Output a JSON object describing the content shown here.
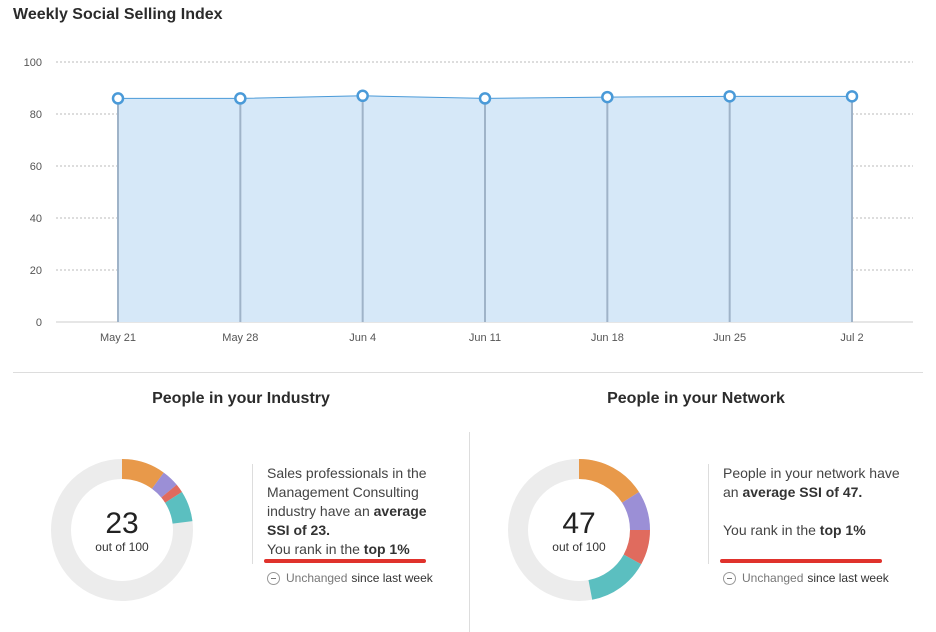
{
  "chart_data": {
    "type": "area",
    "title": "Weekly Social Selling Index",
    "categories": [
      "May 21",
      "May 28",
      "Jun 4",
      "Jun 11",
      "Jun 18",
      "Jun 25",
      "Jul 2"
    ],
    "values": [
      86,
      86,
      87,
      86,
      86.5,
      86.8,
      86.8
    ],
    "ylim": [
      0,
      100
    ],
    "yticks": [
      "100",
      "80",
      "60",
      "40",
      "20",
      "0"
    ],
    "grid": true,
    "colors": {
      "line": "#4a9ad8",
      "fill": "#d6e8f8",
      "stem": "#9fb3c8"
    }
  },
  "industry": {
    "title": "People in your Industry",
    "score": "23",
    "out_of": "out of 100",
    "desc_line1": "Sales professionals in the",
    "desc_line2": "Management Consulting",
    "desc_line3_pre": "industry have an ",
    "desc_line3_bold": "average",
    "desc_line4_bold": "SSI of 23.",
    "rank_pre": "You rank in the ",
    "rank_bold": "top 1%",
    "status_pre": "Unchanged",
    "status_post": "since last week",
    "segments": [
      {
        "value": 10,
        "color": "#e8994a"
      },
      {
        "value": 4,
        "color": "#9b8fd6"
      },
      {
        "value": 2,
        "color": "#e06b5e"
      },
      {
        "value": 7,
        "color": "#5bbfc0"
      }
    ]
  },
  "network": {
    "title": "People in your Network",
    "score": "47",
    "out_of": "out of 100",
    "desc_line1": "People in your network have",
    "desc_line2_pre": "an ",
    "desc_line2_bold": "average SSI of 47.",
    "rank_pre": "You rank in the ",
    "rank_bold": "top 1%",
    "status_pre": "Unchanged",
    "status_post": "since last week",
    "segments": [
      {
        "value": 16,
        "color": "#e8994a"
      },
      {
        "value": 9,
        "color": "#9b8fd6"
      },
      {
        "value": 8,
        "color": "#e06b5e"
      },
      {
        "value": 14,
        "color": "#5bbfc0"
      }
    ]
  }
}
